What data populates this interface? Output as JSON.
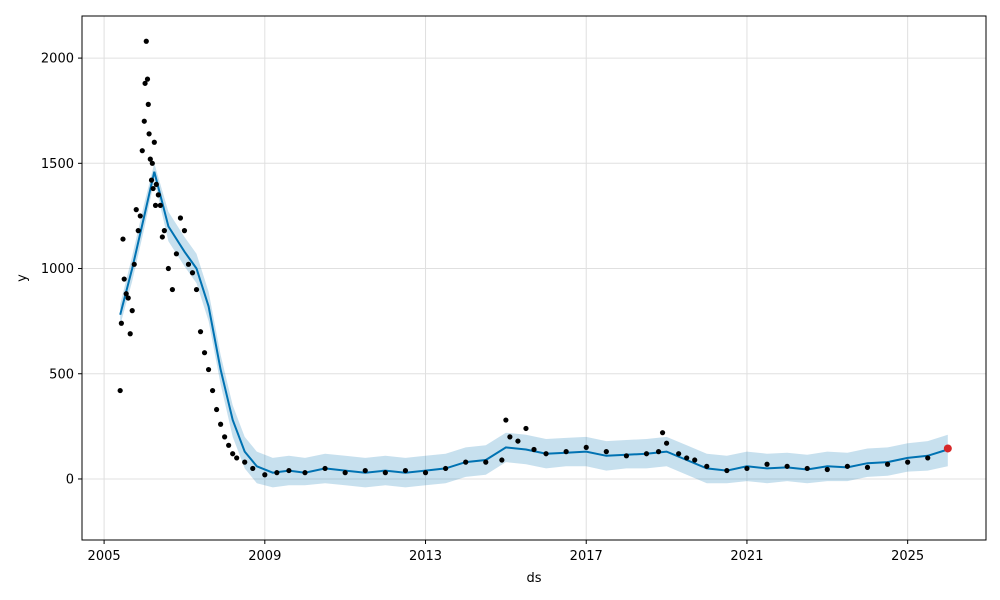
{
  "chart_data": {
    "type": "line",
    "xlabel": "ds",
    "ylabel": "y",
    "xlim": [
      2004.45,
      2026.95
    ],
    "ylim": [
      -290,
      2200
    ],
    "x_ticks": [
      2005,
      2009,
      2013,
      2017,
      2021,
      2025
    ],
    "x_tick_labels": [
      "2005",
      "2009",
      "2013",
      "2017",
      "2021",
      "2025"
    ],
    "y_ticks": [
      0,
      500,
      1000,
      1500,
      2000
    ],
    "y_tick_labels": [
      "0",
      "500",
      "1000",
      "1500",
      "2000"
    ],
    "grid": true,
    "legend": "none",
    "colors": {
      "observed": "#000000",
      "forecast": "#0072B2",
      "uncertainty": "#0072B2",
      "highlight": "#d62728"
    },
    "series": [
      {
        "kind": "forecast",
        "x": [
          2005.4,
          2005.7,
          2006.0,
          2006.25,
          2006.6,
          2007.0,
          2007.3,
          2007.6,
          2007.9,
          2008.2,
          2008.5,
          2008.8,
          2009.2,
          2009.6,
          2010.0,
          2010.5,
          2011.0,
          2011.5,
          2012.0,
          2012.5,
          2013.0,
          2013.5,
          2014.0,
          2014.5,
          2015.0,
          2015.5,
          2016.0,
          2016.5,
          2017.0,
          2017.5,
          2018.0,
          2018.5,
          2019.0,
          2019.5,
          2020.0,
          2020.5,
          2021.0,
          2021.5,
          2022.0,
          2022.5,
          2023.0,
          2023.5,
          2024.0,
          2024.5,
          2025.0,
          2025.5,
          2026.0
        ],
        "y": [
          780,
          1000,
          1250,
          1460,
          1200,
          1080,
          1000,
          820,
          520,
          280,
          130,
          60,
          30,
          40,
          30,
          50,
          40,
          30,
          40,
          30,
          40,
          50,
          80,
          90,
          150,
          140,
          120,
          125,
          130,
          110,
          115,
          120,
          130,
          90,
          50,
          40,
          60,
          50,
          55,
          45,
          60,
          55,
          75,
          80,
          100,
          110,
          140
        ],
        "lower": [
          730,
          940,
          1190,
          1420,
          1130,
          1010,
          930,
          750,
          450,
          200,
          50,
          -20,
          -40,
          -30,
          -30,
          -20,
          -30,
          -40,
          -30,
          -40,
          -30,
          -20,
          10,
          20,
          80,
          70,
          50,
          60,
          60,
          40,
          50,
          50,
          60,
          20,
          -20,
          -20,
          -10,
          -20,
          -10,
          -20,
          -10,
          -10,
          10,
          15,
          35,
          40,
          60
        ],
        "upper": [
          830,
          1060,
          1310,
          1500,
          1270,
          1150,
          1070,
          890,
          590,
          350,
          200,
          130,
          100,
          110,
          100,
          120,
          110,
          100,
          110,
          100,
          110,
          120,
          150,
          160,
          220,
          210,
          190,
          195,
          200,
          180,
          185,
          190,
          200,
          160,
          120,
          110,
          130,
          120,
          125,
          115,
          130,
          125,
          145,
          150,
          170,
          180,
          210
        ]
      },
      {
        "kind": "observed",
        "x": [
          2005.4,
          2005.43,
          2005.47,
          2005.5,
          2005.55,
          2005.6,
          2005.65,
          2005.7,
          2005.75,
          2005.8,
          2005.85,
          2005.9,
          2005.95,
          2006.0,
          2006.02,
          2006.05,
          2006.08,
          2006.1,
          2006.12,
          2006.15,
          2006.18,
          2006.2,
          2006.22,
          2006.25,
          2006.28,
          2006.3,
          2006.35,
          2006.4,
          2006.45,
          2006.5,
          2006.6,
          2006.7,
          2006.8,
          2006.9,
          2007.0,
          2007.1,
          2007.2,
          2007.3,
          2007.4,
          2007.5,
          2007.6,
          2007.7,
          2007.8,
          2007.9,
          2008.0,
          2008.1,
          2008.2,
          2008.3,
          2008.5,
          2008.7,
          2009.0,
          2009.3,
          2009.6,
          2010.0,
          2010.5,
          2011.0,
          2011.5,
          2012.0,
          2012.5,
          2013.0,
          2013.5,
          2014.0,
          2014.5,
          2014.9,
          2015.0,
          2015.1,
          2015.3,
          2015.5,
          2015.7,
          2016.0,
          2016.5,
          2017.0,
          2017.5,
          2018.0,
          2018.5,
          2018.8,
          2018.9,
          2019.0,
          2019.3,
          2019.5,
          2019.7,
          2020.0,
          2020.5,
          2021.0,
          2021.5,
          2022.0,
          2022.5,
          2023.0,
          2023.5,
          2024.0,
          2024.5,
          2025.0,
          2025.5,
          2026.0
        ],
        "y": [
          420,
          740,
          1140,
          950,
          880,
          860,
          690,
          800,
          1020,
          1280,
          1180,
          1250,
          1560,
          1700,
          1880,
          2080,
          1900,
          1780,
          1640,
          1520,
          1420,
          1500,
          1380,
          1600,
          1300,
          1400,
          1350,
          1300,
          1150,
          1180,
          1000,
          900,
          1070,
          1240,
          1180,
          1020,
          980,
          900,
          700,
          600,
          520,
          420,
          330,
          260,
          200,
          160,
          120,
          100,
          80,
          50,
          20,
          30,
          40,
          30,
          50,
          30,
          40,
          30,
          40,
          30,
          50,
          80,
          80,
          90,
          280,
          200,
          180,
          240,
          140,
          120,
          130,
          150,
          130,
          110,
          120,
          130,
          220,
          170,
          120,
          100,
          90,
          60,
          40,
          50,
          70,
          60,
          50,
          45,
          60,
          55,
          70,
          80,
          100,
          140
        ]
      },
      {
        "kind": "highlight",
        "x": [
          2026.0
        ],
        "y": [
          145
        ]
      }
    ]
  }
}
